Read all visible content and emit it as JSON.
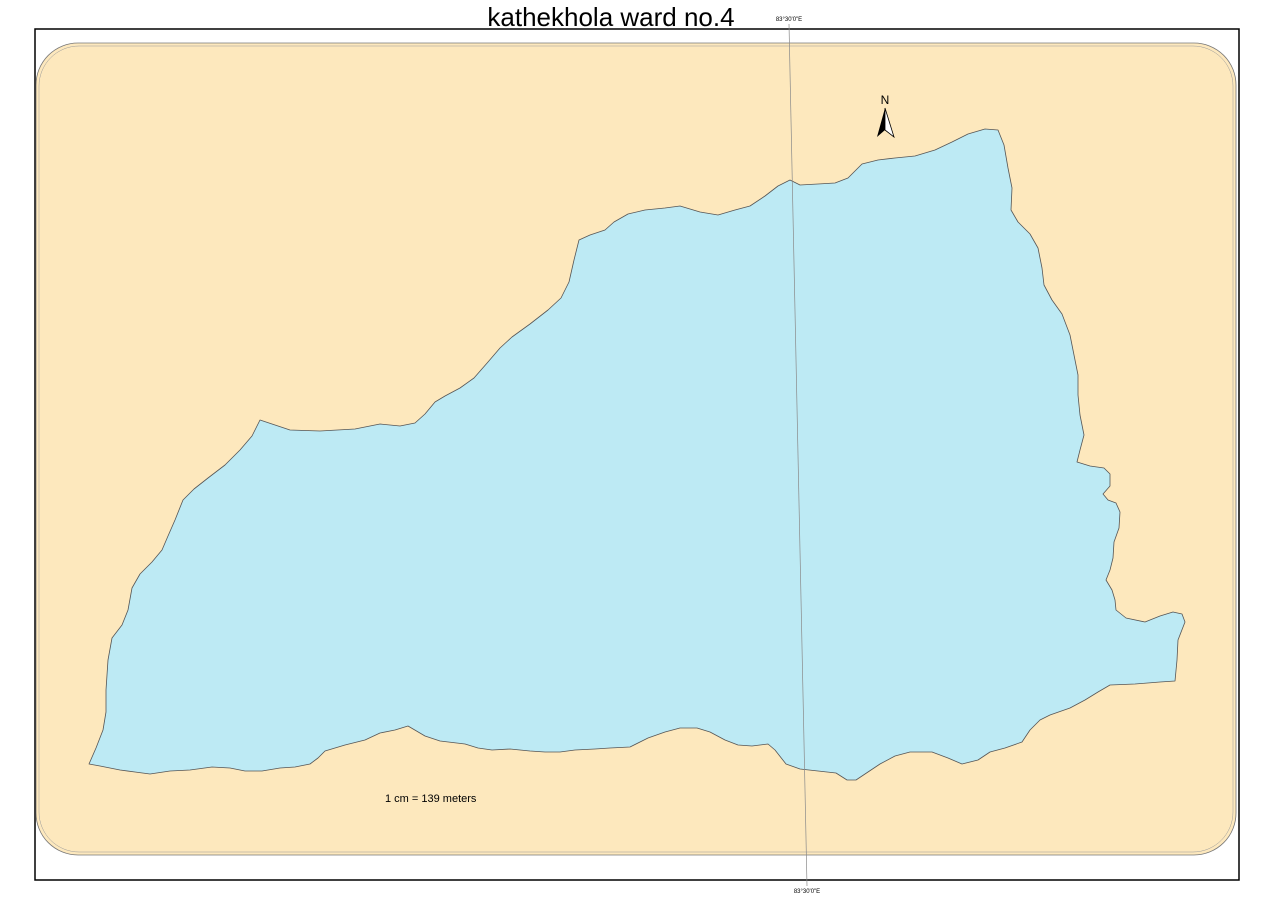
{
  "map": {
    "title": "kathekhola ward no.4",
    "graticule_label_top": "83°30'0\"E",
    "graticule_label_bottom": "83°30'0\"E",
    "north_arrow_label": "N",
    "scale_text": "1 cm = 139 meters"
  },
  "colors": {
    "background_land": "#fde8bd",
    "ward_fill": "#bdeaf4",
    "outline": "#555555",
    "graticule": "#8a8a8a",
    "frame": "#000000"
  },
  "icons": {
    "north_arrow": "north-arrow-icon"
  }
}
